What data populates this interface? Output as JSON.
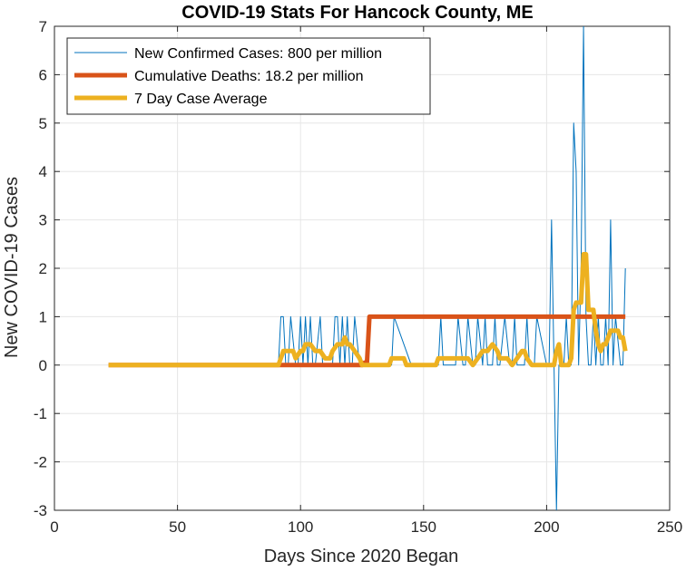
{
  "chart_data": {
    "type": "line",
    "title": "COVID-19 Stats For Hancock County, ME",
    "xlabel": "Days Since 2020 Began",
    "ylabel": "New COVID-19 Cases",
    "xlim": [
      0,
      250
    ],
    "ylim": [
      -3,
      7
    ],
    "xticks": [
      0,
      50,
      100,
      150,
      200,
      250
    ],
    "yticks": [
      -3,
      -2,
      -1,
      0,
      1,
      2,
      3,
      4,
      5,
      6,
      7
    ],
    "grid": true,
    "legend_position": "top-left",
    "series": [
      {
        "name": "New Confirmed Cases: 800 per million",
        "color": "#0072BD",
        "x": [
          22,
          91,
          92,
          93,
          94,
          95,
          96,
          98,
          99,
          100,
          101,
          102,
          103,
          104,
          105,
          106,
          108,
          109,
          110,
          113,
          114,
          115,
          116,
          117,
          118,
          119,
          120,
          121,
          122,
          124,
          125,
          128,
          135,
          136,
          137,
          138,
          145,
          155,
          156,
          157,
          158,
          162,
          163,
          164,
          166,
          167,
          168,
          170,
          171,
          172,
          174,
          175,
          176,
          178,
          179,
          180,
          181,
          183,
          185,
          186,
          187,
          188,
          190,
          191,
          192,
          193,
          195,
          196,
          200,
          201,
          202,
          203,
          204,
          205,
          207,
          208,
          209,
          210,
          211,
          212,
          213,
          214,
          215,
          216,
          217,
          218,
          219,
          220,
          221,
          222,
          223,
          224,
          225,
          226,
          227,
          228,
          230,
          231,
          232
        ],
        "y": [
          0,
          0,
          1,
          1,
          0,
          0,
          1,
          0,
          0,
          1,
          0,
          1,
          0,
          1,
          0,
          0,
          1,
          0,
          0,
          0,
          1,
          1,
          0,
          1,
          0,
          1,
          0,
          0,
          1,
          0,
          0,
          0,
          0,
          0,
          0,
          1,
          0,
          0,
          0,
          1,
          0,
          0,
          0,
          1,
          0,
          0,
          1,
          0,
          0,
          1,
          0,
          1,
          0,
          0,
          1,
          0,
          0,
          1,
          0,
          0,
          1,
          0,
          0,
          0,
          1,
          0,
          0,
          1,
          0,
          0,
          3,
          0,
          -3,
          0,
          0,
          1,
          0,
          0,
          5,
          4,
          0,
          2,
          7,
          1,
          0,
          0,
          1,
          0,
          1,
          0,
          0,
          1,
          0,
          3,
          0,
          1,
          0,
          0,
          2
        ]
      },
      {
        "name": "Cumulative Deaths: 18.2 per million",
        "color": "#D95319",
        "x": [
          22,
          91,
          125,
          126,
          127,
          128,
          129,
          232
        ],
        "y": [
          0,
          0,
          0,
          0.05,
          0.05,
          1,
          1,
          1
        ]
      },
      {
        "name": "7 Day Case Average",
        "color": "#EDB120",
        "x": [
          22,
          91,
          92,
          93,
          95,
          97,
          98,
          100,
          101,
          102,
          104,
          106,
          108,
          110,
          112,
          113,
          115,
          117,
          118,
          119,
          120,
          122,
          124,
          125,
          128,
          134,
          136,
          137,
          138,
          140,
          142,
          143,
          145,
          150,
          155,
          156,
          157,
          158,
          160,
          162,
          164,
          166,
          168,
          170,
          172,
          174,
          176,
          178,
          180,
          181,
          182,
          183,
          184,
          186,
          188,
          190,
          191,
          192,
          194,
          196,
          198,
          200,
          203,
          204,
          205,
          206,
          208,
          209,
          210,
          211,
          212,
          213,
          214,
          215,
          216,
          217,
          218,
          219,
          220,
          221,
          222,
          223,
          224,
          225,
          226,
          227,
          228,
          229,
          230,
          231,
          232
        ],
        "y": [
          0,
          0,
          0.14,
          0.29,
          0.29,
          0.29,
          0.14,
          0.29,
          0.29,
          0.43,
          0.43,
          0.29,
          0.29,
          0.14,
          0.14,
          0.29,
          0.43,
          0.43,
          0.57,
          0.43,
          0.43,
          0.29,
          0.14,
          0,
          0,
          0,
          0,
          0.14,
          0.14,
          0.14,
          0.14,
          0,
          0,
          0,
          0,
          0.14,
          0.14,
          0.14,
          0.14,
          0.14,
          0.14,
          0.14,
          0.14,
          0,
          0.14,
          0.29,
          0.29,
          0.43,
          0.29,
          0.14,
          0.14,
          0.14,
          0.14,
          0,
          0.14,
          0.29,
          0.29,
          0.14,
          0,
          0,
          0,
          0,
          0,
          0.29,
          0.43,
          0,
          0,
          0,
          0.14,
          1.14,
          1.29,
          1.29,
          1.29,
          2.29,
          2.29,
          1.14,
          1.14,
          1.14,
          0.71,
          0.43,
          0.29,
          0.43,
          0.43,
          0.57,
          0.71,
          0.71,
          0.71,
          0.71,
          0.57,
          0.57,
          0.29
        ]
      }
    ]
  }
}
